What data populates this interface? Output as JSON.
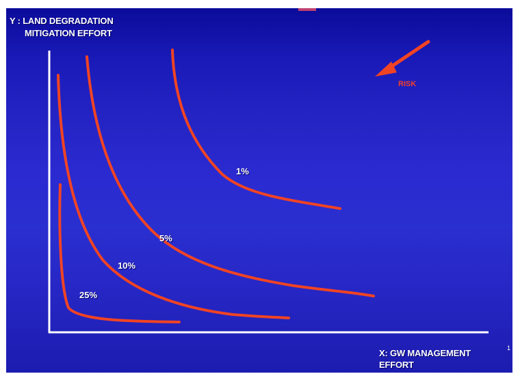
{
  "diagram": {
    "y_axis_label": [
      "Y : LAND DEGRADATION",
      "MITIGATION EFFORT"
    ],
    "x_axis_label": [
      "X: GW MANAGEMENT",
      "EFFORT"
    ],
    "risk_label": "RISK",
    "page_number": "1",
    "curves": [
      {
        "label": "1%"
      },
      {
        "label": "5%"
      },
      {
        "label": "10%"
      },
      {
        "label": "25%"
      }
    ]
  },
  "colors": {
    "background_top": "#0b0b9a",
    "background_mid": "#2a2ad0",
    "curve": "#f04424",
    "axis": "#ffffff",
    "text": "#ffffff"
  }
}
